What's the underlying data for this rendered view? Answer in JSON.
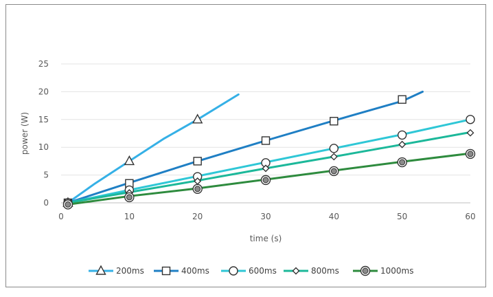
{
  "chart_data": {
    "type": "line",
    "title": "",
    "xlabel": "time (s)",
    "ylabel": "power (W)",
    "xlim": [
      0,
      60
    ],
    "ylim": [
      0,
      25
    ],
    "x_ticks": [
      0,
      10,
      20,
      30,
      40,
      50,
      60
    ],
    "y_ticks": [
      0,
      5,
      10,
      15,
      20,
      25
    ],
    "grid": "horizontal",
    "legend_position": "bottom",
    "series": [
      {
        "name": "200ms",
        "color": "#35b0e6",
        "marker": "triangle",
        "line": [
          [
            1,
            0
          ],
          [
            5,
            3.5
          ],
          [
            10,
            7.5
          ],
          [
            15,
            11.5
          ],
          [
            20,
            15
          ],
          [
            26,
            19.5
          ]
        ],
        "markers": [
          [
            1,
            0
          ],
          [
            10,
            7.5
          ],
          [
            20,
            15
          ]
        ]
      },
      {
        "name": "400ms",
        "color": "#1f7fc4",
        "marker": "square",
        "line": [
          [
            1,
            0
          ],
          [
            10,
            3.6
          ],
          [
            20,
            7.5
          ],
          [
            30,
            11.2
          ],
          [
            40,
            14.8
          ],
          [
            50,
            18.3
          ],
          [
            53,
            20
          ]
        ],
        "markers": [
          [
            1,
            0
          ],
          [
            10,
            3.5
          ],
          [
            20,
            7.5
          ],
          [
            30,
            11.2
          ],
          [
            40,
            14.7
          ],
          [
            50,
            18.6
          ]
        ]
      },
      {
        "name": "600ms",
        "color": "#2fc7d6",
        "marker": "circle",
        "line": [
          [
            1,
            0
          ],
          [
            10,
            2.3
          ],
          [
            20,
            4.8
          ],
          [
            30,
            7.3
          ],
          [
            40,
            9.8
          ],
          [
            50,
            12.3
          ],
          [
            60,
            15
          ]
        ],
        "markers": [
          [
            1,
            0
          ],
          [
            10,
            2.3
          ],
          [
            20,
            4.7
          ],
          [
            30,
            7.2
          ],
          [
            40,
            9.8
          ],
          [
            50,
            12.2
          ],
          [
            60,
            15
          ]
        ]
      },
      {
        "name": "800ms",
        "color": "#1cb89a",
        "marker": "diamond",
        "line": [
          [
            1,
            0
          ],
          [
            10,
            1.9
          ],
          [
            20,
            4.0
          ],
          [
            30,
            6.2
          ],
          [
            40,
            8.3
          ],
          [
            50,
            10.5
          ],
          [
            60,
            12.7
          ]
        ],
        "markers": [
          [
            1,
            0
          ],
          [
            10,
            1.8
          ],
          [
            20,
            3.9
          ],
          [
            30,
            6.2
          ],
          [
            40,
            8.3
          ],
          [
            50,
            10.5
          ],
          [
            60,
            12.6
          ]
        ]
      },
      {
        "name": "1000ms",
        "color": "#2e8b3e",
        "marker": "target",
        "line": [
          [
            1,
            -0.3
          ],
          [
            10,
            1.2
          ],
          [
            20,
            2.6
          ],
          [
            30,
            4.2
          ],
          [
            40,
            5.8
          ],
          [
            50,
            7.4
          ],
          [
            60,
            8.9
          ]
        ],
        "markers": [
          [
            1,
            -0.3
          ],
          [
            10,
            1.0
          ],
          [
            20,
            2.5
          ],
          [
            30,
            4.1
          ],
          [
            40,
            5.7
          ],
          [
            50,
            7.3
          ],
          [
            60,
            8.8
          ]
        ]
      }
    ]
  }
}
